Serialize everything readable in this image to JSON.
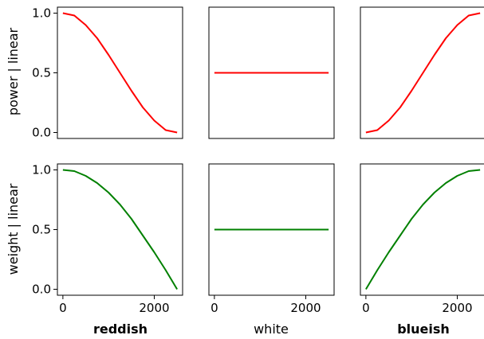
{
  "figure": {
    "row_labels": [
      "power | linear",
      "weight | linear"
    ],
    "column_labels": [
      {
        "text": "reddish",
        "bold": true
      },
      {
        "text": "white",
        "bold": false
      },
      {
        "text": "blueish",
        "bold": true
      }
    ],
    "line_colors": [
      "#ff0000",
      "#008000"
    ]
  },
  "chart_data": [
    {
      "type": "line",
      "row": 0,
      "col": 0,
      "xlim": [
        -120,
        2620
      ],
      "ylim": [
        -0.05,
        1.05
      ],
      "xticks": [],
      "yticks": [
        0.0,
        0.5,
        1.0
      ],
      "ytick_labels": [
        "0.0",
        "0.5",
        "1.0"
      ],
      "color": "#ff0000",
      "series": [
        {
          "x": [
            0,
            250,
            500,
            750,
            1000,
            1250,
            1500,
            1750,
            2000,
            2250,
            2500
          ],
          "values": [
            1.0,
            0.98,
            0.9,
            0.79,
            0.65,
            0.5,
            0.35,
            0.21,
            0.1,
            0.02,
            0.0
          ]
        }
      ]
    },
    {
      "type": "line",
      "row": 0,
      "col": 1,
      "xlim": [
        -120,
        2620
      ],
      "ylim": [
        -0.05,
        1.05
      ],
      "xticks": [],
      "yticks": [],
      "color": "#ff0000",
      "series": [
        {
          "x": [
            0,
            2500
          ],
          "values": [
            0.5,
            0.5
          ]
        }
      ]
    },
    {
      "type": "line",
      "row": 0,
      "col": 2,
      "xlim": [
        -120,
        2620
      ],
      "ylim": [
        -0.05,
        1.05
      ],
      "xticks": [],
      "yticks": [],
      "color": "#ff0000",
      "series": [
        {
          "x": [
            0,
            250,
            500,
            750,
            1000,
            1250,
            1500,
            1750,
            2000,
            2250,
            2500
          ],
          "values": [
            0.0,
            0.02,
            0.1,
            0.21,
            0.35,
            0.5,
            0.65,
            0.79,
            0.9,
            0.98,
            1.0
          ]
        }
      ]
    },
    {
      "type": "line",
      "row": 1,
      "col": 0,
      "xlim": [
        -120,
        2620
      ],
      "ylim": [
        -0.05,
        1.05
      ],
      "xticks": [
        0,
        2000
      ],
      "xtick_labels": [
        "0",
        "2000"
      ],
      "yticks": [
        0.0,
        0.5,
        1.0
      ],
      "ytick_labels": [
        "0.0",
        "0.5",
        "1.0"
      ],
      "color": "#008000",
      "series": [
        {
          "x": [
            0,
            250,
            500,
            750,
            1000,
            1250,
            1500,
            1750,
            2000,
            2250,
            2500
          ],
          "values": [
            1.0,
            0.99,
            0.95,
            0.89,
            0.81,
            0.71,
            0.59,
            0.45,
            0.31,
            0.16,
            0.0
          ]
        }
      ]
    },
    {
      "type": "line",
      "row": 1,
      "col": 1,
      "xlim": [
        -120,
        2620
      ],
      "ylim": [
        -0.05,
        1.05
      ],
      "xticks": [
        0,
        2000
      ],
      "xtick_labels": [
        "0",
        "2000"
      ],
      "yticks": [],
      "color": "#008000",
      "series": [
        {
          "x": [
            0,
            2500
          ],
          "values": [
            0.5,
            0.5
          ]
        }
      ]
    },
    {
      "type": "line",
      "row": 1,
      "col": 2,
      "xlim": [
        -120,
        2620
      ],
      "ylim": [
        -0.05,
        1.05
      ],
      "xticks": [
        0,
        2000
      ],
      "xtick_labels": [
        "0",
        "2000"
      ],
      "yticks": [],
      "color": "#008000",
      "series": [
        {
          "x": [
            0,
            250,
            500,
            750,
            1000,
            1250,
            1500,
            1750,
            2000,
            2250,
            2500
          ],
          "values": [
            0.0,
            0.16,
            0.31,
            0.45,
            0.59,
            0.71,
            0.81,
            0.89,
            0.95,
            0.99,
            1.0
          ]
        }
      ]
    }
  ]
}
